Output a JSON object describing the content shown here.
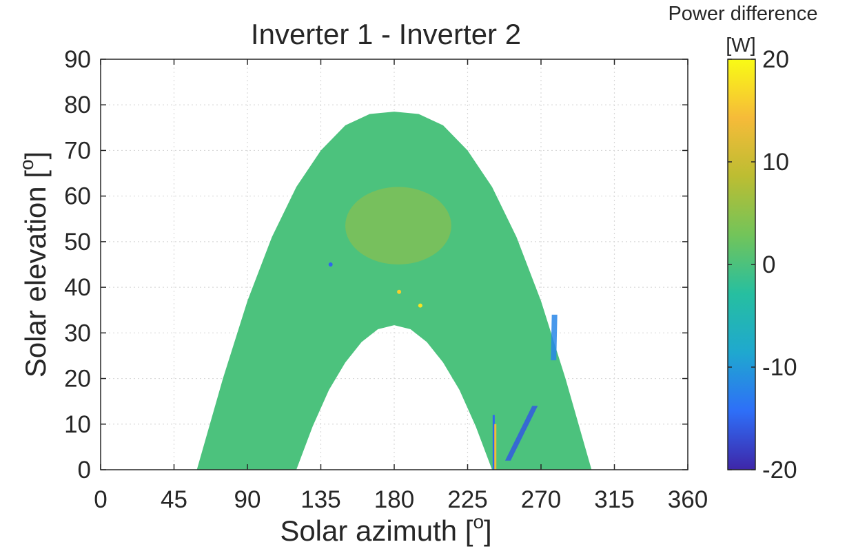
{
  "chart_data": {
    "type": "heatmap",
    "title": "Inverter 1 - Inverter 2",
    "xlabel": "Solar azimuth [",
    "xlabel_sup": "o",
    "xlabel_end": "]",
    "ylabel": "Solar elevation [",
    "ylabel_sup": "o",
    "ylabel_end": "]",
    "xlim": [
      0,
      360
    ],
    "ylim": [
      0,
      90
    ],
    "xticks": [
      "0",
      "45",
      "90",
      "135",
      "180",
      "225",
      "270",
      "315",
      "360"
    ],
    "yticks": [
      "0",
      "10",
      "20",
      "30",
      "40",
      "50",
      "60",
      "70",
      "80",
      "90"
    ],
    "grid": true,
    "colorbar": {
      "title_line1": "Power difference",
      "title_line2": "[W]",
      "range": [
        -20,
        20
      ],
      "ticks": [
        "20",
        "10",
        "0",
        "-10",
        "-20"
      ],
      "colormap": "parula",
      "colors": [
        "#3e26a8",
        "#2e6ff8",
        "#1fa8cf",
        "#26bfa0",
        "#72c45a",
        "#bcbd32",
        "#f6bb39",
        "#f9fb15"
      ]
    },
    "region": {
      "outer_boundary": {
        "azimuth": [
          59,
          75,
          90,
          105,
          120,
          135,
          150,
          165,
          180,
          195,
          210,
          225,
          240,
          255,
          270,
          285,
          301
        ],
        "elevation": [
          0,
          20,
          37,
          51,
          62,
          70,
          75.5,
          78,
          78.5,
          78,
          75.5,
          70,
          62,
          51,
          37,
          20,
          0
        ]
      },
      "inner_boundary": {
        "azimuth": [
          120,
          130,
          140,
          150,
          160,
          170,
          180,
          190,
          200,
          210,
          220,
          230,
          240
        ],
        "elevation": [
          0,
          9.5,
          17.5,
          23.5,
          28,
          30.8,
          31.7,
          30.8,
          28,
          23.5,
          17.5,
          9.5,
          0
        ]
      },
      "background_value": 0,
      "features": [
        {
          "kind": "arc-band",
          "elevation_range": [
            45,
            62
          ],
          "azimuth_range": [
            150,
            215
          ],
          "value": 6
        },
        {
          "kind": "streak",
          "azimuth": 241,
          "elevation_range": [
            0,
            12
          ],
          "value": -15
        },
        {
          "kind": "streak",
          "azimuth": 242,
          "elevation_range": [
            0,
            10
          ],
          "value": 14
        },
        {
          "kind": "streak",
          "azimuth_range": [
            248,
            268
          ],
          "elevation_range": [
            2,
            14
          ],
          "value": -16
        },
        {
          "kind": "streak",
          "azimuth_range": [
            276,
            280
          ],
          "elevation_range": [
            24,
            34
          ],
          "value": -12
        },
        {
          "kind": "spot",
          "azimuth": 141,
          "elevation": 45,
          "value": -15
        },
        {
          "kind": "spot",
          "azimuth": 196,
          "elevation": 36,
          "value": 18
        },
        {
          "kind": "spot",
          "azimuth": 183,
          "elevation": 39,
          "value": 16
        }
      ]
    }
  }
}
